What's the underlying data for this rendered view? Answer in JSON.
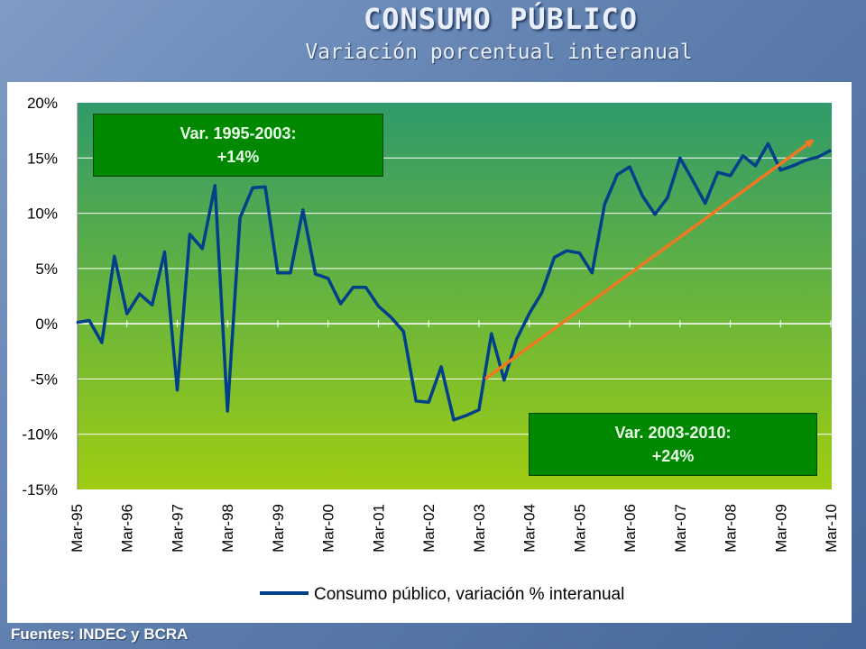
{
  "header": {
    "title": "CONSUMO PÚBLICO",
    "subtitle": "Variación porcentual interanual"
  },
  "footer": {
    "source": "Fuentes: INDEC y BCRA"
  },
  "annotations": {
    "first": {
      "line1": "Var. 1995-2003:",
      "line2": "+14%"
    },
    "second": {
      "line1": "Var. 2003-2010:",
      "line2": "+24%"
    }
  },
  "colors": {
    "series_line": "#003f8a",
    "trend_arrow": "#f07820",
    "plot_top": "#2f9a6a",
    "plot_bottom": "#9fcd12",
    "annotation_box": "#008800"
  },
  "chart_data": {
    "type": "line",
    "x": [
      "Mar-95",
      "Jun-95",
      "Sep-95",
      "Dec-95",
      "Mar-96",
      "Jun-96",
      "Sep-96",
      "Dec-96",
      "Mar-97",
      "Jun-97",
      "Sep-97",
      "Dec-97",
      "Mar-98",
      "Jun-98",
      "Sep-98",
      "Dec-98",
      "Mar-99",
      "Jun-99",
      "Sep-99",
      "Dec-99",
      "Mar-00",
      "Jun-00",
      "Sep-00",
      "Dec-00",
      "Mar-01",
      "Jun-01",
      "Sep-01",
      "Dec-01",
      "Mar-02",
      "Jun-02",
      "Sep-02",
      "Dec-02",
      "Mar-03",
      "Jun-03",
      "Sep-03",
      "Dec-03",
      "Mar-04",
      "Jun-04",
      "Sep-04",
      "Dec-04",
      "Mar-05",
      "Jun-05",
      "Sep-05",
      "Dec-05",
      "Mar-06",
      "Jun-06",
      "Sep-06",
      "Dec-06",
      "Mar-07",
      "Jun-07",
      "Sep-07",
      "Dec-07",
      "Mar-08",
      "Jun-08",
      "Sep-08",
      "Dec-08",
      "Mar-09",
      "Jun-09",
      "Sep-09",
      "Dec-09",
      "Mar-10"
    ],
    "categories": [
      "Mar-95",
      "Mar-96",
      "Mar-97",
      "Mar-98",
      "Mar-99",
      "Mar-00",
      "Mar-01",
      "Mar-02",
      "Mar-03",
      "Mar-04",
      "Mar-05",
      "Mar-06",
      "Mar-07",
      "Mar-08",
      "Mar-09",
      "Mar-10"
    ],
    "series": [
      {
        "name": "Consumo público, variación % interanual",
        "values": [
          0.1,
          0.3,
          -1.7,
          6.1,
          0.9,
          2.7,
          1.7,
          6.5,
          -6.0,
          8.1,
          6.8,
          12.5,
          -7.9,
          9.6,
          12.3,
          12.4,
          4.6,
          4.6,
          10.3,
          4.5,
          4.1,
          1.8,
          3.3,
          3.3,
          1.6,
          0.6,
          -0.7,
          -7.0,
          -7.1,
          -3.9,
          -8.7,
          -8.3,
          -7.8,
          -0.9,
          -5.1,
          -1.4,
          0.9,
          2.8,
          6.0,
          6.6,
          6.4,
          4.6,
          10.8,
          13.5,
          14.2,
          11.6,
          9.9,
          11.4,
          15.0,
          13.0,
          10.9,
          13.7,
          13.4,
          15.2,
          14.3,
          16.3,
          13.9,
          14.3,
          14.8,
          15.1,
          15.7
        ]
      }
    ],
    "trend": {
      "from": {
        "x": "Mar-03",
        "y": -5.0
      },
      "to": {
        "x": "Mar-10",
        "y": 16.6
      }
    },
    "y_ticks": [
      "20%",
      "15%",
      "10%",
      "5%",
      "0%",
      "-5%",
      "-10%",
      "-15%"
    ],
    "ylim": [
      -15,
      20
    ],
    "grid": true,
    "legend_position": "bottom"
  }
}
